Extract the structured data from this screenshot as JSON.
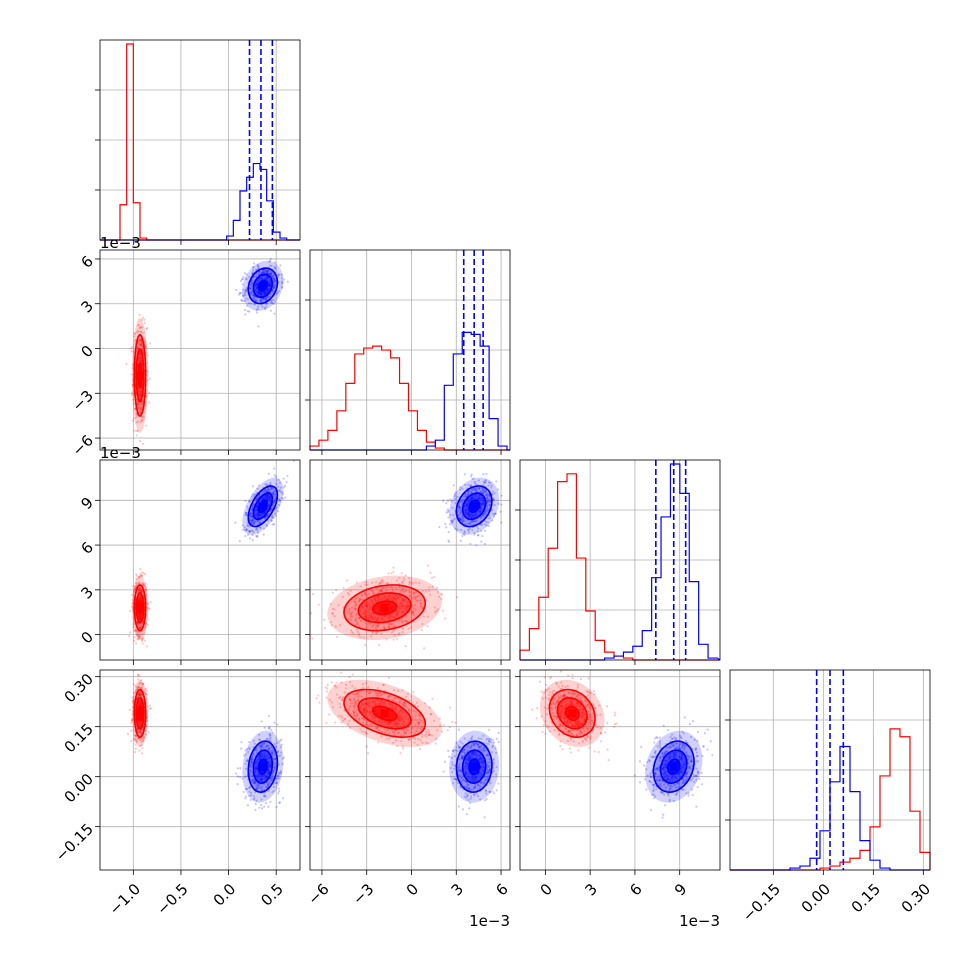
{
  "chart_data": {
    "type": "corner",
    "title": "",
    "colors": {
      "red": "#ff0000",
      "blue": "#0000ff",
      "grid": "#b0b0b0"
    },
    "grid": true,
    "parameters": [
      {
        "range": [
          -1.35,
          0.75
        ],
        "ticks": [
          -1.0,
          -0.5,
          0.0,
          0.5
        ],
        "tick_labels": [
          "−1.0",
          "−0.5",
          "0.0",
          "0.5"
        ],
        "offset_label": ""
      },
      {
        "range": [
          -0.0068,
          0.0066
        ],
        "ticks": [
          -0.006,
          -0.003,
          0.0,
          0.003,
          0.006
        ],
        "tick_labels": [
          "−6",
          "−3",
          "0",
          "3",
          "6"
        ],
        "offset_label": "1e−3"
      },
      {
        "range": [
          -0.0017,
          0.0117
        ],
        "ticks": [
          0.0,
          0.003,
          0.006,
          0.009
        ],
        "tick_labels": [
          "0",
          "3",
          "6",
          "9"
        ],
        "offset_label": "1e−3"
      },
      {
        "range": [
          -0.28,
          0.32
        ],
        "ticks": [
          -0.15,
          0.0,
          0.15,
          0.3
        ],
        "tick_labels": [
          "−0.15",
          "0.00",
          "0.15",
          "0.30"
        ],
        "offset_label": ""
      }
    ],
    "quantile_lines_blue": [
      [
        0.22,
        0.34,
        0.46
      ],
      [
        0.0035,
        0.0042,
        0.0048
      ],
      [
        0.0074,
        0.0086,
        0.0094
      ],
      [
        -0.02,
        0.02,
        0.06
      ]
    ],
    "series": [
      {
        "color": "red",
        "mean": [
          -0.93,
          -0.0018,
          0.0018,
          0.19
        ],
        "sd": [
          0.035,
          0.0016,
          0.0009,
          0.042
        ],
        "corr": [
          [
            0,
            1,
            0.0
          ],
          [
            0,
            2,
            0.0
          ],
          [
            0,
            3,
            0.0
          ],
          [
            1,
            2,
            0.2
          ],
          [
            1,
            3,
            -0.45
          ],
          [
            2,
            3,
            -0.2
          ]
        ],
        "hist": [
          {
            "x0": -1.35,
            "bin": 0.07,
            "counts": [
              0,
              0,
              0,
              0.18,
              1.0,
              0.19,
              0.01,
              0,
              0,
              0,
              0,
              0,
              0,
              0,
              0,
              0,
              0,
              0,
              0,
              0,
              0,
              0,
              0,
              0,
              0,
              0,
              0,
              0,
              0,
              0
            ]
          },
          {
            "x0": -0.0068,
            "bin": 0.0006,
            "counts": [
              0.02,
              0.05,
              0.1,
              0.2,
              0.34,
              0.49,
              0.52,
              0.53,
              0.51,
              0.47,
              0.34,
              0.2,
              0.1,
              0.04,
              0.01,
              0.0,
              0,
              0,
              0,
              0,
              0,
              0,
              0
            ]
          },
          {
            "x0": -0.0017,
            "bin": 0.00063,
            "counts": [
              0.05,
              0.16,
              0.32,
              0.57,
              0.91,
              0.95,
              0.52,
              0.25,
              0.1,
              0.04,
              0.02,
              0.01,
              0,
              0,
              0,
              0,
              0,
              0,
              0,
              0,
              0
            ]
          },
          {
            "x0": -0.28,
            "bin": 0.03,
            "counts": [
              0,
              0,
              0,
              0,
              0,
              0,
              0,
              0,
              0,
              0.01,
              0.02,
              0.04,
              0.06,
              0.1,
              0.22,
              0.48,
              0.72,
              0.68,
              0.3,
              0.09,
              0.01,
              0
            ]
          }
        ]
      },
      {
        "color": "blue",
        "mean": [
          0.36,
          0.0042,
          0.0086,
          0.03
        ],
        "sd": [
          0.09,
          0.0007,
          0.0008,
          0.045
        ],
        "corr": [
          [
            0,
            1,
            0.2
          ],
          [
            0,
            2,
            0.55
          ],
          [
            0,
            3,
            0.15
          ],
          [
            1,
            2,
            0.25
          ],
          [
            1,
            3,
            0.05
          ],
          [
            2,
            3,
            0.2
          ]
        ],
        "hist": [
          {
            "x0": -1.35,
            "bin": 0.07,
            "counts": [
              0,
              0,
              0,
              0,
              0,
              0,
              0,
              0,
              0,
              0,
              0,
              0,
              0,
              0,
              0,
              0,
              0,
              0,
              0,
              0.02,
              0.1,
              0.25,
              0.32,
              0.39,
              0.36,
              0.2,
              0.04,
              0.01,
              0,
              0
            ]
          },
          {
            "x0": -0.0068,
            "bin": 0.0006,
            "counts": [
              0,
              0,
              0,
              0,
              0,
              0,
              0,
              0,
              0,
              0,
              0,
              0,
              0,
              0.02,
              0.05,
              0.33,
              0.49,
              0.6,
              0.59,
              0.53,
              0.16,
              0.02,
              0
            ]
          },
          {
            "x0": -0.0017,
            "bin": 0.00063,
            "counts": [
              0,
              0,
              0,
              0,
              0,
              0,
              0,
              0,
              0,
              0.01,
              0.02,
              0.04,
              0.07,
              0.15,
              0.42,
              0.73,
              1.0,
              0.85,
              0.4,
              0.08,
              0.01
            ]
          },
          {
            "x0": -0.28,
            "bin": 0.03,
            "counts": [
              0,
              0,
              0,
              0,
              0,
              0,
              0.01,
              0.02,
              0.06,
              0.2,
              0.45,
              0.63,
              0.4,
              0.15,
              0.05,
              0.01,
              0,
              0,
              0,
              0,
              0,
              0
            ]
          }
        ]
      }
    ]
  }
}
